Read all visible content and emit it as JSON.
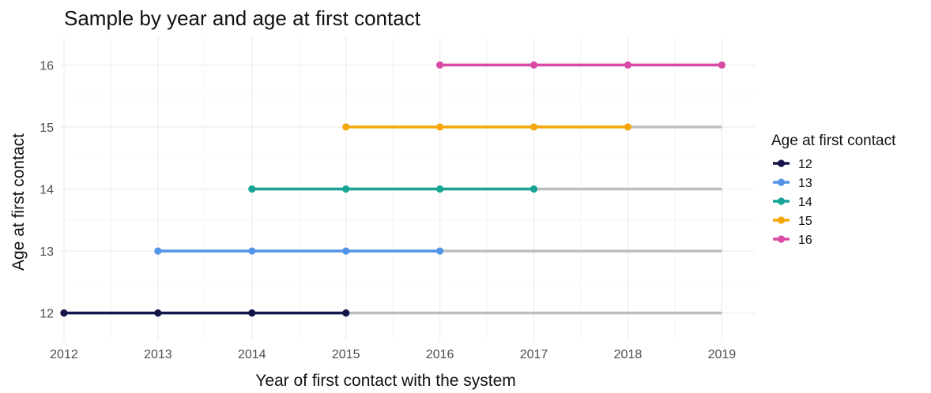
{
  "chart_data": {
    "type": "line",
    "title": "Sample by year and age at first contact",
    "xlabel": "Year of first contact with the system",
    "ylabel": "Age at first contact",
    "xlim": [
      2011.95,
      2019.35
    ],
    "ylim": [
      11.55,
      16.45
    ],
    "x_ticks": [
      2012,
      2013,
      2014,
      2015,
      2016,
      2017,
      2018,
      2019
    ],
    "y_ticks": [
      12,
      13,
      14,
      15,
      16
    ],
    "grid": true,
    "legend": {
      "title": "Age at first contact",
      "position": "right",
      "entries": [
        "12",
        "13",
        "14",
        "15",
        "16"
      ]
    },
    "background_color": "#bebebe",
    "series": [
      {
        "name": "12",
        "color": "#14164a",
        "y": 12,
        "x": [
          2012,
          2013,
          2014,
          2015
        ],
        "background_x": [
          2012,
          2019
        ]
      },
      {
        "name": "13",
        "color": "#5595e8",
        "y": 13,
        "x": [
          2013,
          2014,
          2015,
          2016
        ],
        "background_x": [
          2013,
          2019
        ]
      },
      {
        "name": "14",
        "color": "#17a496",
        "y": 14,
        "x": [
          2014,
          2015,
          2016,
          2017
        ],
        "background_x": [
          2014,
          2019
        ]
      },
      {
        "name": "15",
        "color": "#f5a80a",
        "y": 15,
        "x": [
          2015,
          2016,
          2017,
          2018
        ],
        "background_x": [
          2015,
          2019
        ]
      },
      {
        "name": "16",
        "color": "#d84aa5",
        "y": 16,
        "x": [
          2016,
          2017,
          2018,
          2019
        ],
        "background_x": [
          2016,
          2019
        ]
      }
    ]
  }
}
